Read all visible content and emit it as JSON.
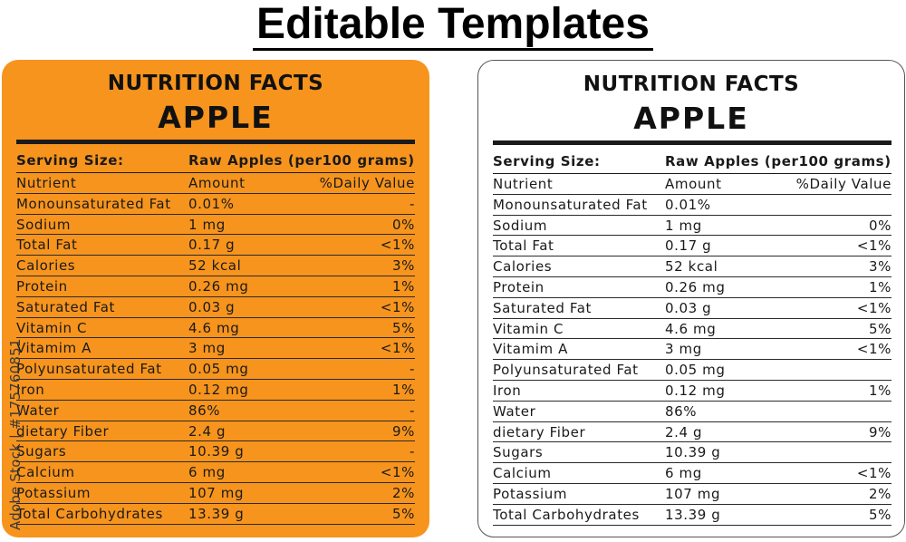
{
  "page_title": "Editable Templates",
  "label": {
    "title": "NUTRITION FACTS",
    "product": "APPLE",
    "serving_label": "Serving Size:",
    "serving_value": "Raw Apples (per100 grams)",
    "headers": [
      "Nutrient",
      "Amount",
      "%Daily Value"
    ],
    "rows": [
      {
        "nutrient": "Monounsaturated Fat",
        "amount": "0.01%",
        "dv": "-"
      },
      {
        "nutrient": "Sodium",
        "amount": "1 mg",
        "dv": "0%"
      },
      {
        "nutrient": "Total Fat",
        "amount": "0.17 g",
        "dv": "<1%"
      },
      {
        "nutrient": "Calories",
        "amount": "52 kcal",
        "dv": "3%"
      },
      {
        "nutrient": "Protein",
        "amount": "0.26 mg",
        "dv": "1%"
      },
      {
        "nutrient": "Saturated Fat",
        "amount": "0.03 g",
        "dv": "<1%"
      },
      {
        "nutrient": "Vitamin C",
        "amount": "4.6 mg",
        "dv": "5%"
      },
      {
        "nutrient": "Vitamim A",
        "amount": "3 mg",
        "dv": "<1%"
      },
      {
        "nutrient": "Polyunsaturated Fat",
        "amount": "0.05 mg",
        "dv": "-"
      },
      {
        "nutrient": "Iron",
        "amount": "0.12 mg",
        "dv": "1%"
      },
      {
        "nutrient": "Water",
        "amount": "86%",
        "dv": "-"
      },
      {
        "nutrient": "dietary Fiber",
        "amount": "2.4 g",
        "dv": "9%"
      },
      {
        "nutrient": "Sugars",
        "amount": "10.39 g",
        "dv": "-"
      },
      {
        "nutrient": "Calcium",
        "amount": "6 mg",
        "dv": "<1%"
      },
      {
        "nutrient": "Potassium",
        "amount": "107 mg",
        "dv": "2%"
      },
      {
        "nutrient": "Total Carbohydrates",
        "amount": "13.39 g",
        "dv": "5%"
      }
    ]
  },
  "cards": [
    {
      "name": "orange",
      "background": "#f7941d",
      "show_dashes": true
    },
    {
      "name": "white",
      "background": "#ffffff",
      "show_dashes": false
    }
  ],
  "watermark": "Adobe Stock | #175760851"
}
